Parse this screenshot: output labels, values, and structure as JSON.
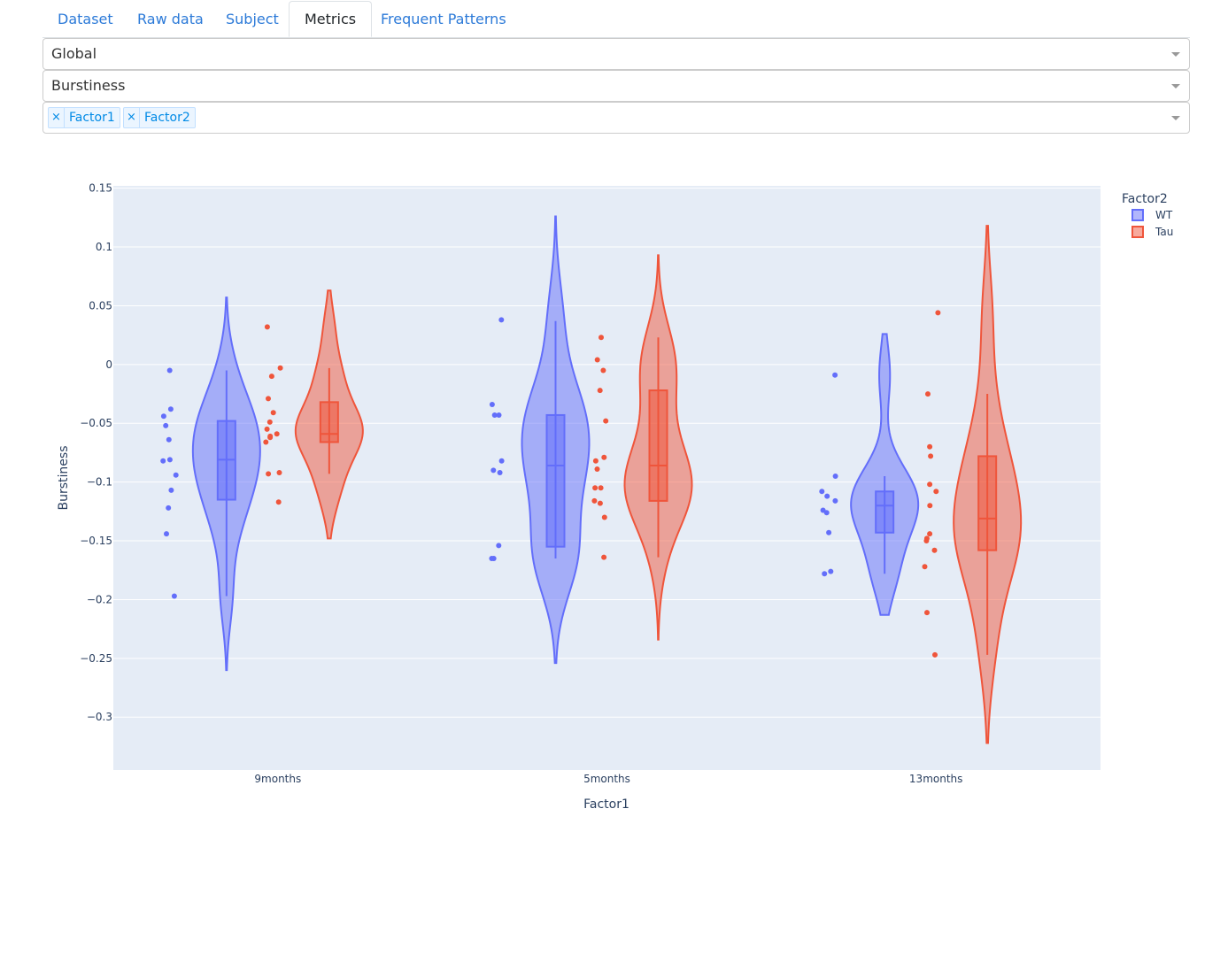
{
  "tabs": [
    {
      "label": "Dataset",
      "active": false
    },
    {
      "label": "Raw data",
      "active": false
    },
    {
      "label": "Subject",
      "active": false
    },
    {
      "label": "Metrics",
      "active": true
    },
    {
      "label": "Frequent Patterns",
      "active": false
    }
  ],
  "filters": {
    "scope": "Global",
    "metric": "Burstiness",
    "factors": [
      "Factor1",
      "Factor2"
    ],
    "chip_remove_glyph": "×"
  },
  "chart_data": {
    "type": "violin",
    "xlabel": "Factor1",
    "ylabel": "Burstiness",
    "ylim": [
      -0.345,
      0.152
    ],
    "yticks": [
      0.15,
      0.1,
      0.05,
      0,
      -0.05,
      -0.1,
      -0.15,
      -0.2,
      -0.25,
      -0.3
    ],
    "ytick_labels": [
      "0.15",
      "0.1",
      "0.05",
      "0",
      "−0.05",
      "−0.1",
      "−0.15",
      "−0.2",
      "−0.25",
      "−0.3"
    ],
    "categories": [
      "9months",
      "5months",
      "13months"
    ],
    "legend_title": "Factor2",
    "legend_position": "top-right",
    "plot_background": "#e5ecf6",
    "grid": true,
    "series": [
      {
        "name": "WT",
        "color": "#636efa",
        "groups": [
          {
            "category": "9months",
            "box": {
              "q1": -0.115,
              "median": -0.081,
              "q3": -0.048,
              "whisker_low": -0.197,
              "whisker_high": -0.005
            },
            "violin_range": [
              -0.26,
              0.057
            ],
            "points": [
              -0.005,
              -0.038,
              -0.044,
              -0.052,
              -0.064,
              -0.081,
              -0.082,
              -0.094,
              -0.107,
              -0.122,
              -0.144,
              -0.197
            ]
          },
          {
            "category": "5months",
            "box": {
              "q1": -0.155,
              "median": -0.086,
              "q3": -0.043,
              "whisker_low": -0.165,
              "whisker_high": 0.037
            },
            "violin_range": [
              -0.254,
              0.126
            ],
            "points": [
              0.038,
              -0.034,
              -0.043,
              -0.043,
              -0.082,
              -0.09,
              -0.092,
              -0.154,
              -0.165,
              -0.165
            ]
          },
          {
            "category": "13months",
            "box": {
              "q1": -0.143,
              "median": -0.12,
              "q3": -0.108,
              "whisker_low": -0.178,
              "whisker_high": -0.095
            },
            "violin_range": [
              -0.213,
              0.026
            ],
            "points": [
              -0.009,
              -0.095,
              -0.108,
              -0.112,
              -0.116,
              -0.124,
              -0.126,
              -0.143,
              -0.176,
              -0.178
            ]
          }
        ]
      },
      {
        "name": "Tau",
        "color": "#ef553b",
        "groups": [
          {
            "category": "9months",
            "box": {
              "q1": -0.066,
              "median": -0.059,
              "q3": -0.032,
              "whisker_low": -0.093,
              "whisker_high": -0.003
            },
            "violin_range": [
              -0.148,
              0.063
            ],
            "points": [
              0.032,
              -0.003,
              -0.01,
              -0.029,
              -0.041,
              -0.049,
              -0.055,
              -0.059,
              -0.061,
              -0.062,
              -0.066,
              -0.092,
              -0.093,
              -0.117
            ]
          },
          {
            "category": "5months",
            "box": {
              "q1": -0.116,
              "median": -0.086,
              "q3": -0.022,
              "whisker_low": -0.164,
              "whisker_high": 0.023
            },
            "violin_range": [
              -0.234,
              0.093
            ],
            "points": [
              0.023,
              0.004,
              -0.005,
              -0.022,
              -0.048,
              -0.079,
              -0.082,
              -0.089,
              -0.105,
              -0.105,
              -0.116,
              -0.118,
              -0.13,
              -0.164
            ]
          },
          {
            "category": "13months",
            "box": {
              "q1": -0.158,
              "median": -0.131,
              "q3": -0.078,
              "whisker_low": -0.247,
              "whisker_high": -0.025
            },
            "violin_range": [
              -0.322,
              0.118
            ],
            "points": [
              0.044,
              -0.025,
              -0.07,
              -0.078,
              -0.102,
              -0.108,
              -0.12,
              -0.144,
              -0.148,
              -0.15,
              -0.158,
              -0.172,
              -0.211,
              -0.247
            ]
          }
        ]
      }
    ]
  }
}
